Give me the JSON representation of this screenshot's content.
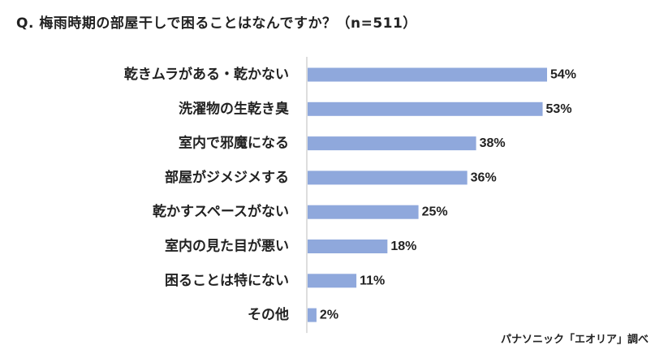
{
  "chart_data": {
    "type": "bar",
    "orientation": "horizontal",
    "title": "Q. 梅雨時期の部屋干しで困ることはなんですか？（n=511）",
    "categories": [
      "乾きムラがある・乾かない",
      "洗濯物の生乾き臭",
      "室内で邪魔になる",
      "部屋がジメジメする",
      "乾かすスペースがない",
      "室内の見た目が悪い",
      "困ることは特にない",
      "その他"
    ],
    "values": [
      54,
      53,
      38,
      36,
      25,
      18,
      11,
      2
    ],
    "value_labels": [
      "54%",
      "53%",
      "38%",
      "36%",
      "25%",
      "18%",
      "11%",
      "2%"
    ],
    "xlim": [
      0,
      100
    ],
    "bar_color": "#8fa8dc",
    "axis_color": "#bdbdbd",
    "grid": false,
    "legend": "none"
  },
  "source": "パナソニック「エオリア」調べ"
}
